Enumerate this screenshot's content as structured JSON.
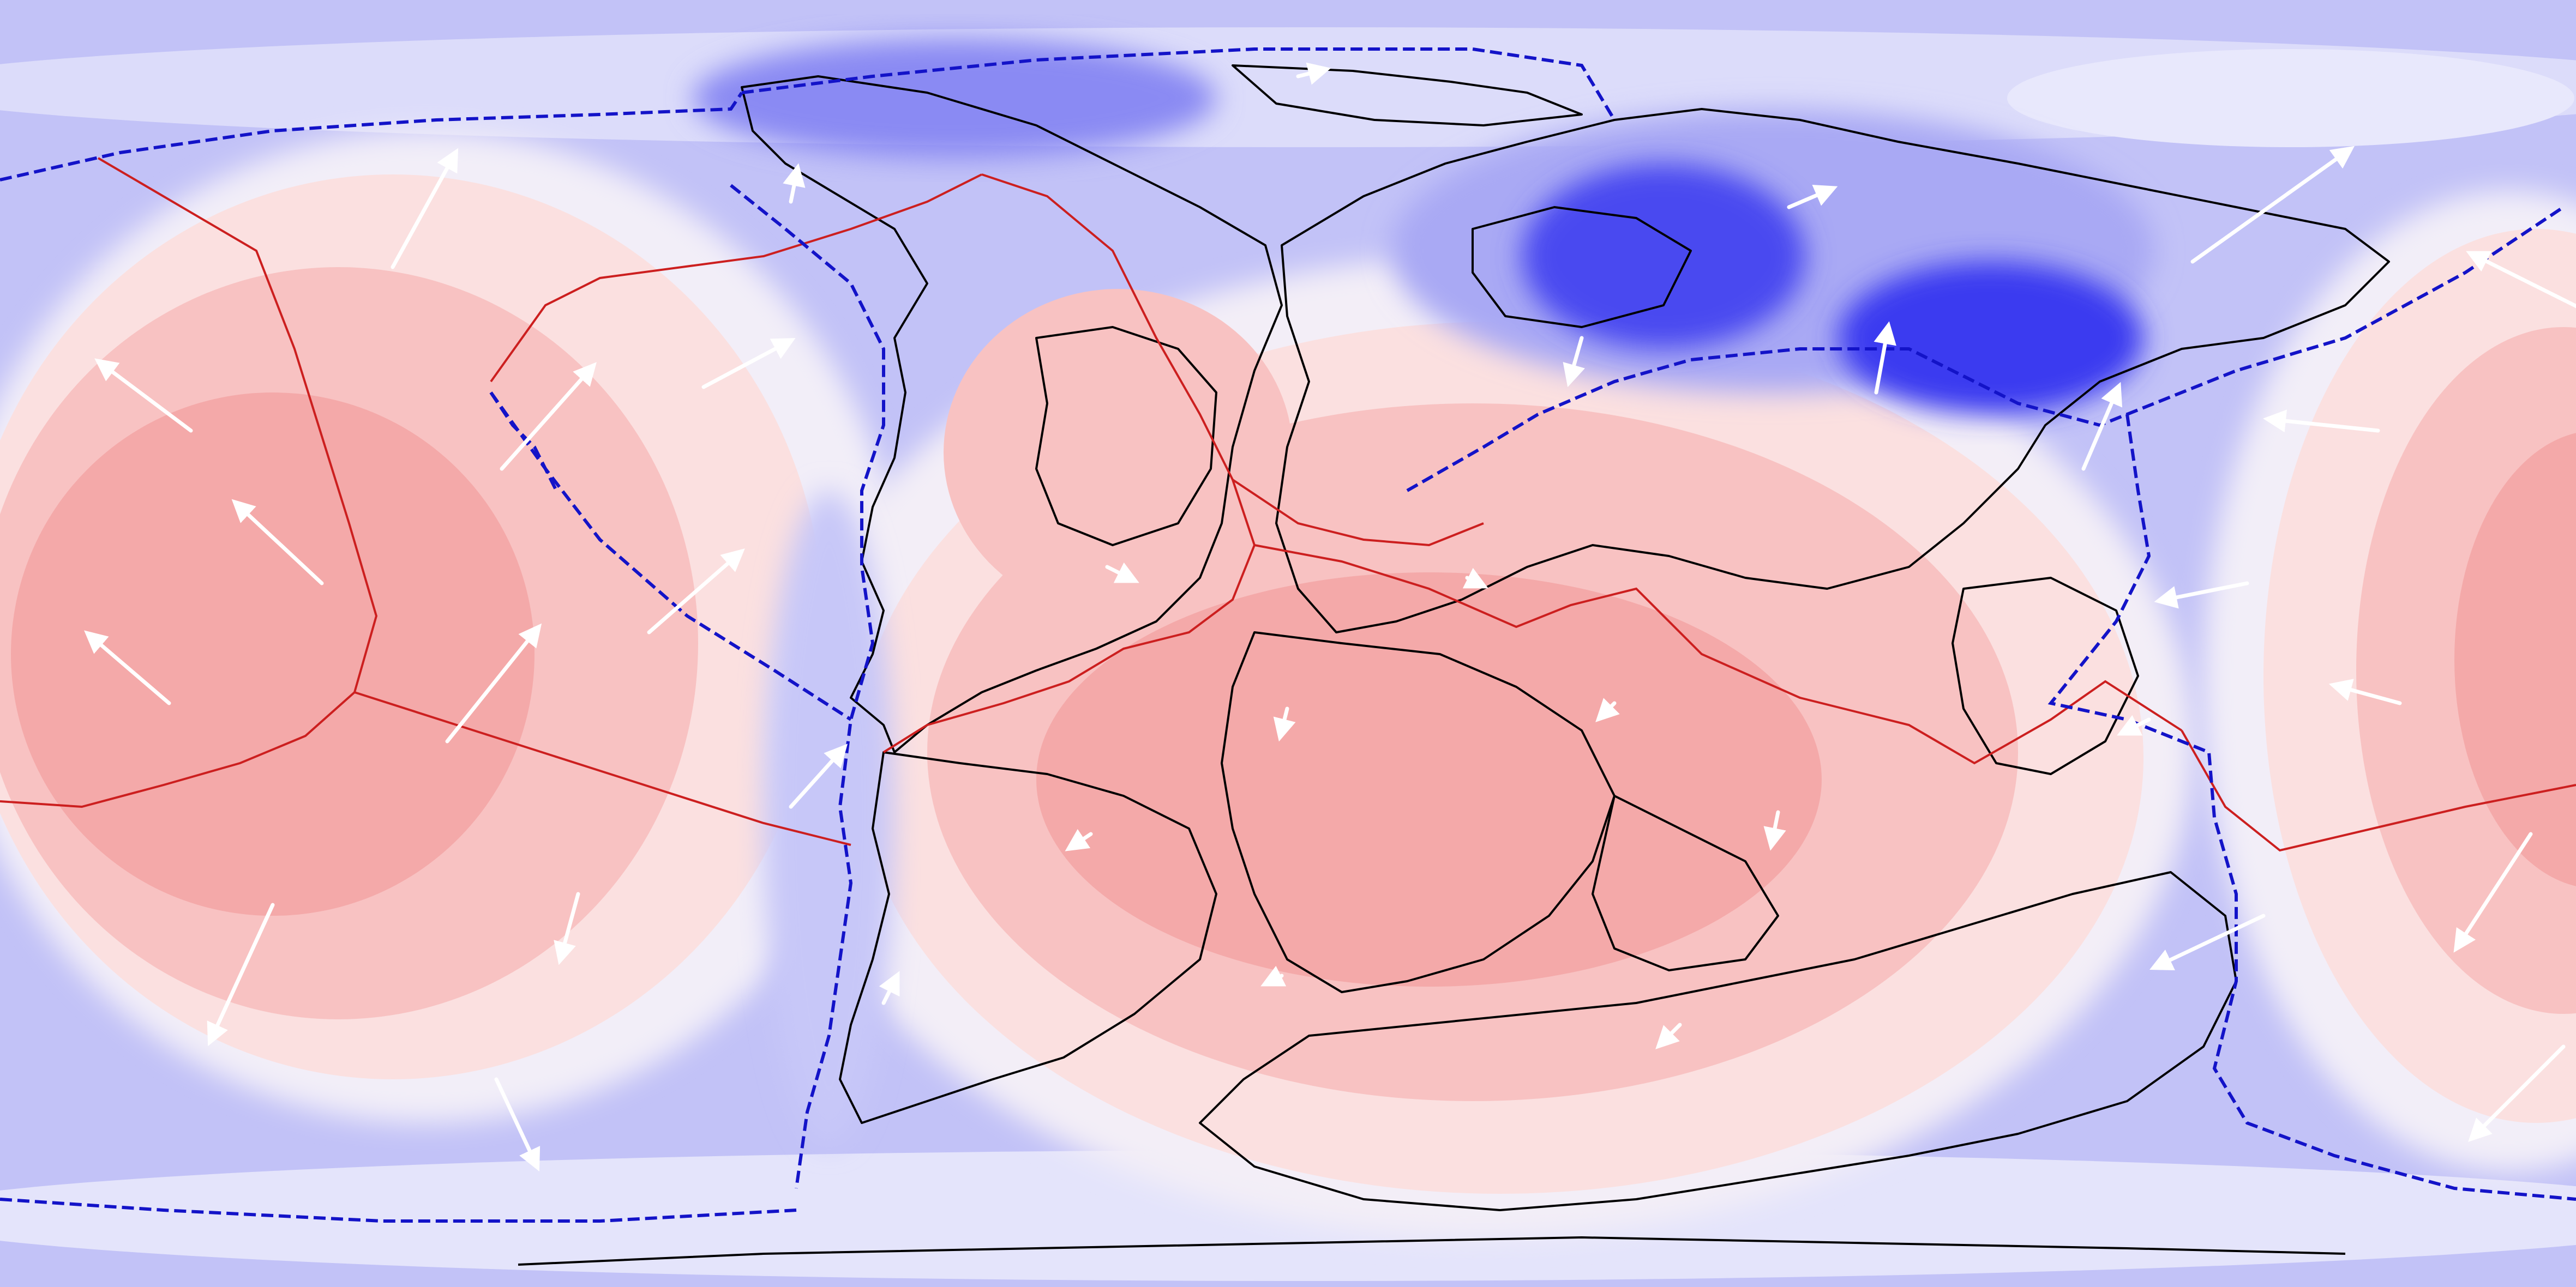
{
  "map": {
    "projection": "global-equirectangular",
    "colors": {
      "ocean_fill": "#c2c2f7",
      "positive_strong": "#f4a9a9",
      "positive_mid": "#f8c2c2",
      "positive_light": "#fbe0e0",
      "neutral": "#f7f3f7",
      "negative_light": "#dcdcfa",
      "negative_mid": "#a9a9f4",
      "negative_strong": "#2e2ef0",
      "ridge_boundary": "#cc1f1f",
      "subduction_boundary": "#1313c8",
      "coastline": "#000000",
      "velocity_arrow": "#ffffff"
    },
    "layers": [
      "field-contours",
      "coastlines",
      "ridge-boundaries",
      "subduction-zones",
      "velocity-arrows"
    ]
  }
}
